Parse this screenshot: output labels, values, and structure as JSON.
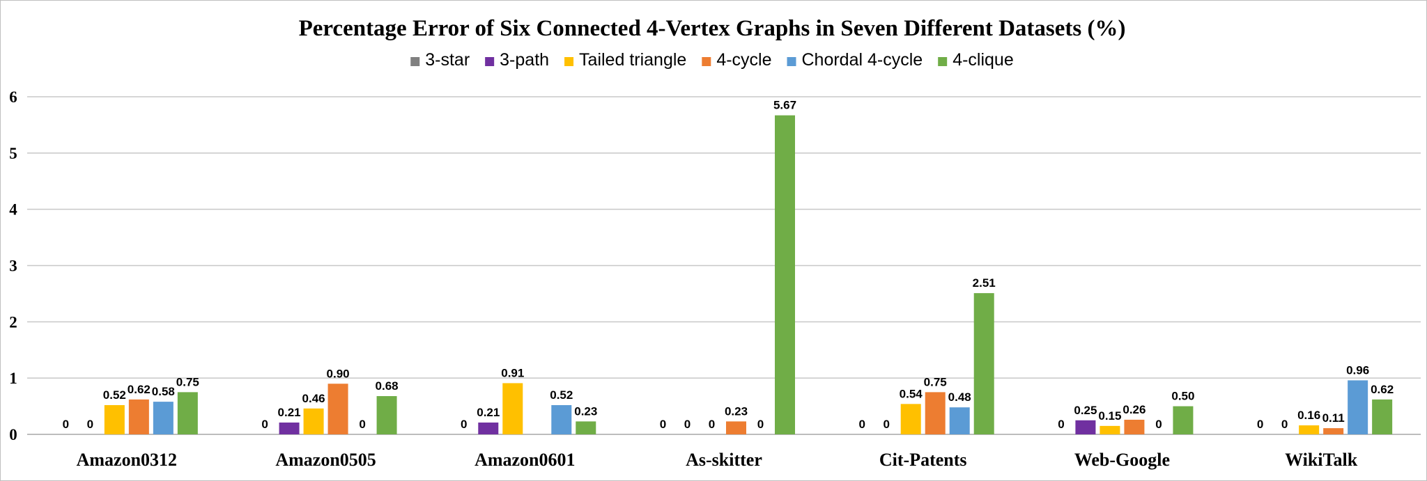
{
  "chart_data": {
    "type": "bar",
    "title": "Percentage Error of Six Connected 4-Vertex Graphs in Seven Different Datasets (%)",
    "xlabel": "",
    "ylabel": "",
    "ylim": [
      0,
      6
    ],
    "yticks": [
      0,
      1,
      2,
      3,
      4,
      5,
      6
    ],
    "grid": true,
    "legend_position": "top",
    "categories": [
      "Amazon0312",
      "Amazon0505",
      "Amazon0601",
      "As-skitter",
      "Cit-Patents",
      "Web-Google",
      "WikiTalk"
    ],
    "series": [
      {
        "name": "3-star",
        "color": "#808080",
        "values": [
          0,
          0,
          0,
          0,
          0,
          0,
          0
        ],
        "labels": [
          "0",
          "0",
          "0",
          "0",
          "0",
          "0",
          "0"
        ]
      },
      {
        "name": "3-path",
        "color": "#7030a0",
        "values": [
          0,
          0.21,
          0.21,
          0,
          0,
          0.25,
          0
        ],
        "labels": [
          "0",
          "0.21",
          "0.21",
          "0",
          "0",
          "0.25",
          "0"
        ]
      },
      {
        "name": "Tailed triangle",
        "color": "#ffc000",
        "values": [
          0.52,
          0.46,
          0.91,
          0,
          0.54,
          0.15,
          0.16
        ],
        "labels": [
          "0.52",
          "0.46",
          "0.91",
          "0",
          "0.54",
          "0.15",
          "0.16"
        ]
      },
      {
        "name": "4-cycle",
        "color": "#ed7d31",
        "values": [
          0.62,
          0.9,
          0,
          0.23,
          0.75,
          0.26,
          0.11
        ],
        "labels": [
          "0.62",
          "0.90",
          "",
          "0.23",
          "0.75",
          "0.26",
          "0.11"
        ]
      },
      {
        "name": "Chordal 4-cycle",
        "color": "#5b9bd5",
        "values": [
          0.58,
          0,
          0.52,
          0,
          0.48,
          0,
          0.96
        ],
        "labels": [
          "0.58",
          "0",
          "0.52",
          "0",
          "0.48",
          "0",
          "0.96"
        ]
      },
      {
        "name": "4-clique",
        "color": "#70ad47",
        "values": [
          0.75,
          0.68,
          0.23,
          5.67,
          2.51,
          0.5,
          0.62
        ],
        "labels": [
          "0.75",
          "0.68",
          "0.23",
          "5.67",
          "2.51",
          "0.50",
          "0.62"
        ]
      }
    ]
  }
}
